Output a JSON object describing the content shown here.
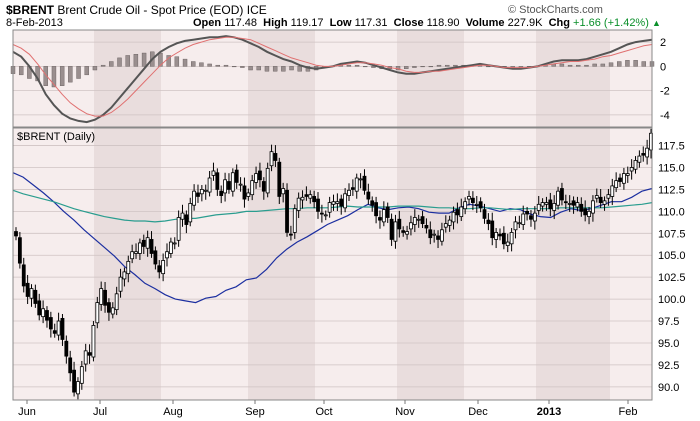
{
  "header": {
    "symbol": "$BRENT",
    "name": "Brent Crude Oil - Spot Price (EOD)",
    "exchange": "ICE",
    "date": "8-Feb-2013",
    "open_label": "Open",
    "open": "117.48",
    "high_label": "High",
    "high": "119.17",
    "low_label": "Low",
    "low": "117.31",
    "close_label": "Close",
    "close": "118.90",
    "volume_label": "Volume",
    "volume": "227.9K",
    "chg_label": "Chg",
    "chg": "+1.66 (+1.42%)",
    "chg_color": "#0a8f2a"
  },
  "watermark": "© StockCharts.com",
  "chart_data": [
    {
      "type": "line",
      "panel": "indicator",
      "yticks": [
        2,
        0,
        -2,
        -4
      ],
      "ylim": [
        -5,
        3
      ],
      "grid": true,
      "series": [
        {
          "role": "line-a",
          "color": "#555555",
          "values": [
            1.2,
            0.8,
            0.0,
            -1.0,
            -2.3,
            -3.2,
            -3.9,
            -4.3,
            -4.5,
            -4.6,
            -4.4,
            -4.0,
            -3.4,
            -2.6,
            -1.8,
            -1.0,
            -0.2,
            0.6,
            1.2,
            1.6,
            1.9,
            2.1,
            2.2,
            2.3,
            2.4,
            2.4,
            2.5,
            2.4,
            2.2,
            1.9,
            1.6,
            1.2,
            0.9,
            0.6,
            0.4,
            0.1,
            -0.1,
            -0.2,
            -0.1,
            0.0,
            0.2,
            0.3,
            0.4,
            0.3,
            0.1,
            -0.1,
            -0.3,
            -0.5,
            -0.6,
            -0.6,
            -0.5,
            -0.4,
            -0.3,
            -0.2,
            -0.1,
            0.0,
            0.1,
            0.2,
            0.1,
            0.0,
            -0.1,
            -0.2,
            -0.2,
            -0.1,
            0.0,
            0.2,
            0.4,
            0.5,
            0.5,
            0.5,
            0.6,
            0.8,
            1.0,
            1.2,
            1.5,
            1.8,
            2.0,
            2.1,
            2.2
          ]
        },
        {
          "role": "line-b",
          "color": "#e07070",
          "values": [
            1.8,
            1.5,
            1.0,
            0.2,
            -0.7,
            -1.5,
            -2.3,
            -3.0,
            -3.5,
            -3.9,
            -4.1,
            -4.1,
            -3.8,
            -3.3,
            -2.7,
            -2.0,
            -1.3,
            -0.6,
            0.1,
            0.7,
            1.1,
            1.5,
            1.8,
            2.0,
            2.2,
            2.3,
            2.4,
            2.4,
            2.3,
            2.2,
            1.9,
            1.6,
            1.3,
            1.0,
            0.7,
            0.5,
            0.3,
            0.1,
            0.0,
            0.0,
            0.1,
            0.2,
            0.3,
            0.3,
            0.2,
            0.1,
            -0.1,
            -0.2,
            -0.4,
            -0.5,
            -0.5,
            -0.4,
            -0.4,
            -0.3,
            -0.2,
            -0.1,
            0.0,
            0.1,
            0.1,
            0.0,
            -0.1,
            -0.1,
            -0.1,
            -0.1,
            0.0,
            0.1,
            0.2,
            0.3,
            0.4,
            0.4,
            0.5,
            0.6,
            0.8,
            0.9,
            1.1,
            1.3,
            1.5,
            1.7,
            1.8
          ]
        }
      ]
    },
    {
      "type": "candlestick",
      "panel": "price",
      "label": "$BRENT (Daily)",
      "xticks": [
        "Jun",
        "Jul",
        "Aug",
        "Sep",
        "Oct",
        "Nov",
        "Dec",
        "2013",
        "Feb"
      ],
      "yticks": [
        117.5,
        115.0,
        112.5,
        110.0,
        107.5,
        105.0,
        102.5,
        100.0,
        97.5,
        95.0,
        92.5,
        90.0
      ],
      "ylim": [
        88.5,
        119.5
      ],
      "grid": true,
      "closes": [
        107.2,
        104.1,
        101.5,
        100.3,
        101.2,
        99.5,
        98.2,
        98.9,
        97.6,
        96.6,
        96.1,
        97.5,
        95.4,
        93.5,
        91.6,
        89.4,
        90.6,
        92.3,
        94.1,
        93.6,
        97.0,
        99.6,
        101.2,
        99.3,
        98.5,
        99.0,
        100.6,
        102.5,
        103.1,
        104.3,
        105.4,
        105.4,
        106.4,
        106.0,
        107.0,
        105.2,
        104.0,
        103.1,
        104.4,
        105.4,
        106.5,
        106.4,
        109.3,
        109.8,
        108.5,
        110.9,
        112.3,
        111.7,
        112.5,
        112.4,
        113.8,
        114.6,
        112.5,
        111.8,
        113.6,
        112.5,
        114.4,
        113.3,
        113.1,
        111.4,
        112.1,
        113.5,
        114.3,
        113.6,
        112.3,
        114.9,
        116.8,
        115.8,
        111.7,
        112.6,
        107.6,
        107.3,
        110.3,
        111.5,
        111.6,
        111.7,
        111.9,
        111.1,
        110.0,
        109.7,
        109.6,
        111.0,
        111.1,
        111.1,
        110.6,
        112.0,
        112.4,
        112.5,
        113.8,
        113.7,
        112.4,
        111.4,
        110.7,
        109.5,
        109.0,
        110.2,
        109.3,
        106.8,
        108.8,
        108.0,
        107.6,
        107.7,
        108.7,
        109.3,
        109.1,
        108.6,
        108.1,
        107.0,
        107.4,
        106.8,
        107.9,
        108.6,
        109.0,
        109.9,
        109.6,
        110.5,
        111.1,
        111.7,
        111.0,
        110.8,
        110.4,
        109.2,
        108.6,
        107.0,
        107.6,
        107.2,
        106.3,
        106.5,
        107.6,
        108.8,
        108.7,
        109.7,
        109.7,
        109.1,
        109.8,
        110.8,
        111.0,
        111.0,
        110.3,
        110.9,
        112.3,
        111.3,
        111.0,
        110.9,
        110.7,
        111.0,
        110.0,
        109.6,
        110.0,
        111.2,
        111.8,
        111.0,
        111.2,
        111.9,
        112.9,
        113.5,
        113.4,
        114.3,
        114.3,
        115.0,
        115.8,
        116.3,
        116.4,
        117.2,
        118.9
      ]
    },
    {
      "type": "line",
      "panel": "price-overlay",
      "series": [
        {
          "role": "moving-average-fast",
          "color": "#1c2fa0",
          "values": [
            114.4,
            113.9,
            113.0,
            112.1,
            111.1,
            110.0,
            109.0,
            107.9,
            106.9,
            105.9,
            104.9,
            103.7,
            102.8,
            101.8,
            101.2,
            100.5,
            100.0,
            99.8,
            99.6,
            100.1,
            100.3,
            101.0,
            101.4,
            102.2,
            102.4,
            103.4,
            104.7,
            105.7,
            106.5,
            107.1,
            107.8,
            108.5,
            109.0,
            109.5,
            110.2,
            110.8,
            110.4,
            110.2,
            110.4,
            110.5,
            110.3,
            109.9,
            109.8,
            109.8,
            110.4,
            110.8,
            110.6,
            110.3,
            110.0,
            110.3,
            110.2,
            109.7,
            109.4,
            109.3,
            109.9,
            110.3,
            110.1,
            110.3,
            110.7,
            111.1,
            111.1,
            111.6,
            112.3,
            112.6
          ]
        },
        {
          "role": "moving-average-slow",
          "color": "#2a9d8f",
          "values": [
            112.4,
            112.0,
            111.7,
            111.4,
            111.1,
            110.7,
            110.3,
            110.0,
            109.7,
            109.4,
            109.2,
            109.0,
            108.9,
            108.9,
            108.8,
            108.9,
            109.1,
            109.2,
            109.2,
            109.4,
            109.6,
            109.7,
            109.8,
            110.0,
            110.0,
            110.1,
            110.2,
            110.3,
            110.3,
            110.4,
            110.4,
            110.4,
            110.5,
            110.6,
            110.5,
            110.5,
            110.5,
            110.5,
            110.6,
            110.6,
            110.6,
            110.5,
            110.4,
            110.4,
            110.3,
            110.3,
            110.4,
            110.4,
            110.3,
            110.2,
            110.3,
            110.3,
            110.3,
            110.3,
            110.4,
            110.4,
            110.4,
            110.4,
            110.4,
            110.5,
            110.6,
            110.7,
            110.8,
            111.0
          ]
        }
      ]
    }
  ]
}
